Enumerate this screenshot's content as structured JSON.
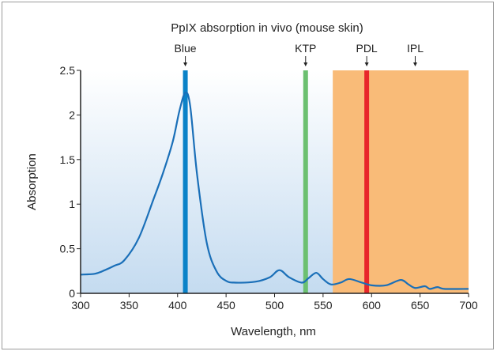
{
  "chart_data": {
    "type": "line",
    "title": "PpIX absorption in vivo (mouse skin)",
    "xlabel": "Wavelength, nm",
    "ylabel": "Absorption",
    "xlim": [
      300,
      700
    ],
    "ylim": [
      0,
      2.5
    ],
    "xticks": [
      300,
      350,
      400,
      450,
      500,
      550,
      600,
      650,
      700
    ],
    "yticks": [
      0,
      0.5,
      1,
      1.5,
      2,
      2.5
    ],
    "ytick_labels": [
      "0",
      "0.5",
      "1",
      "1.5",
      "2",
      "2.5"
    ],
    "grid": false,
    "series": [
      {
        "color": "#1a6fb8",
        "x": [
          300,
          315,
          325,
          335,
          345,
          360,
          375,
          385,
          395,
          402,
          408,
          413,
          420,
          430,
          440,
          450,
          460,
          480,
          495,
          505,
          515,
          528,
          535,
          543,
          550,
          558,
          568,
          577,
          590,
          600,
          615,
          630,
          638,
          645,
          655,
          660,
          668,
          675,
          700
        ],
        "y": [
          0.21,
          0.22,
          0.26,
          0.31,
          0.37,
          0.62,
          1.05,
          1.35,
          1.7,
          2.05,
          2.25,
          2.1,
          1.34,
          0.57,
          0.25,
          0.14,
          0.12,
          0.13,
          0.18,
          0.26,
          0.18,
          0.12,
          0.17,
          0.23,
          0.16,
          0.1,
          0.12,
          0.16,
          0.12,
          0.09,
          0.09,
          0.15,
          0.1,
          0.06,
          0.08,
          0.05,
          0.07,
          0.05,
          0.05
        ]
      }
    ],
    "light_sources": [
      {
        "label": "Blue",
        "wavelength": 408,
        "color": "#0a82c8",
        "type": "line"
      },
      {
        "label": "KTP",
        "wavelength": 532,
        "color": "#6cc070",
        "type": "line"
      },
      {
        "label": "PDL",
        "wavelength": 595,
        "color": "#e8262a",
        "type": "line"
      },
      {
        "label": "IPL",
        "range": [
          560,
          700
        ],
        "label_at": 645,
        "color": "#f9bb78",
        "type": "band"
      }
    ],
    "background_gradient": [
      "#ffffff",
      "#c4dbf0"
    ]
  }
}
